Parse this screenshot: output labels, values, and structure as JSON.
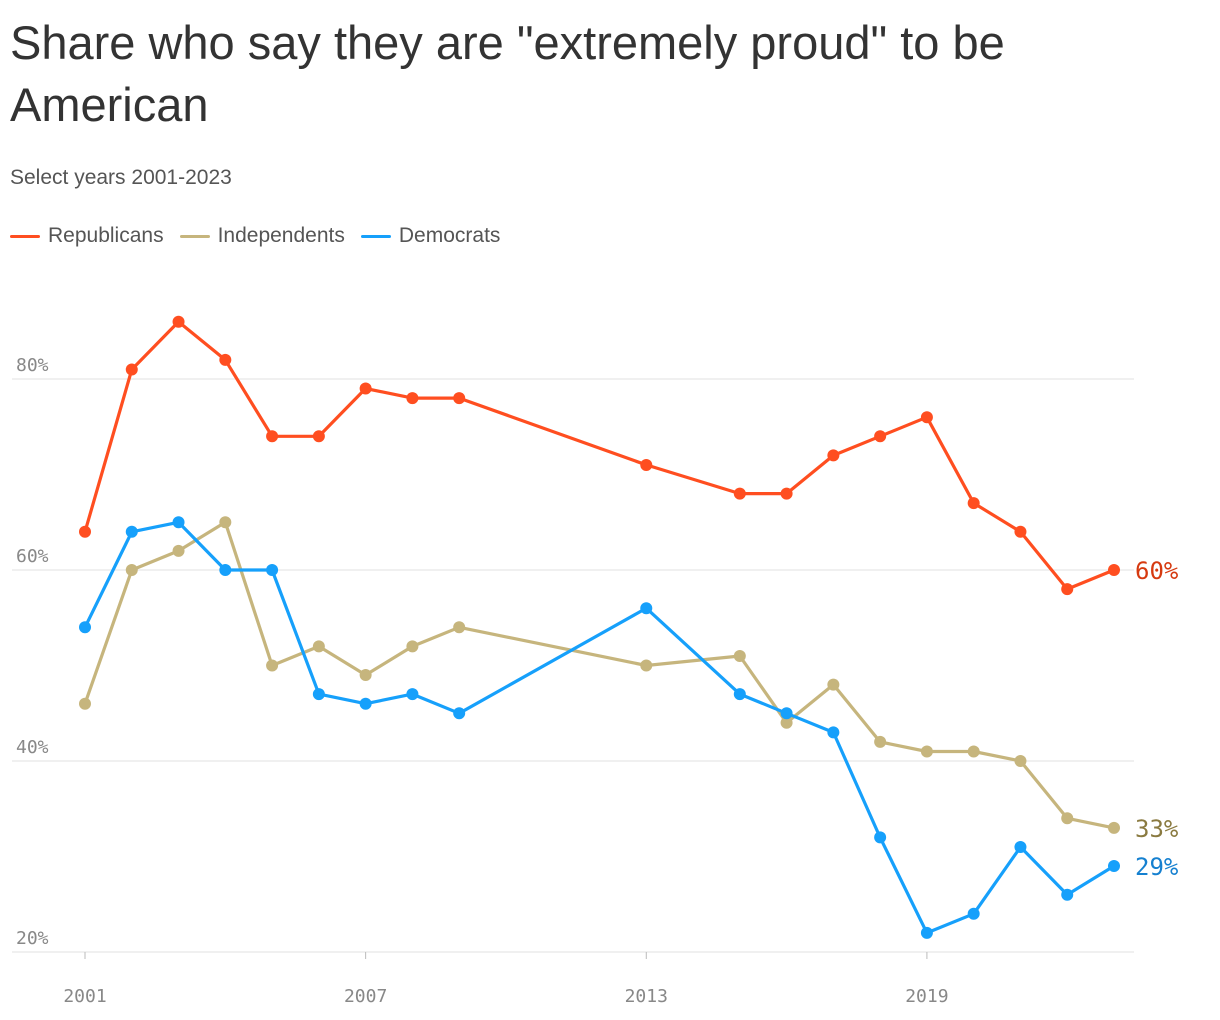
{
  "title": "Share who say they are \"extremely proud\" to be American",
  "subtitle": "Select years 2001-2023",
  "colors": {
    "republicans": "#ff4e20",
    "independents": "#c6b57d",
    "democrats": "#16a0fb",
    "rep_label": "#d63a10",
    "ind_label": "#8a7a40",
    "dem_label": "#1580d0",
    "grid": "#e2e2e2"
  },
  "chart_data": {
    "type": "line",
    "x": [
      2001,
      2002,
      2003,
      2004,
      2005,
      2006,
      2007,
      2008,
      2009,
      2013,
      2015,
      2016,
      2017,
      2018,
      2019,
      2020,
      2021,
      2022,
      2023
    ],
    "x_ticks": [
      "2001",
      "2007",
      "2013",
      "2019"
    ],
    "y_ticks": [
      "20%",
      "40%",
      "60%",
      "80%"
    ],
    "ylim": [
      20,
      88
    ],
    "grid": true,
    "legend_position": "top-left",
    "series": [
      {
        "name": "Republicans",
        "key": "republicans",
        "values": [
          64,
          81,
          86,
          82,
          74,
          74,
          79,
          78,
          78,
          71,
          68,
          68,
          72,
          74,
          76,
          67,
          64,
          58,
          60
        ],
        "end_label": "60%"
      },
      {
        "name": "Independents",
        "key": "independents",
        "values": [
          46,
          60,
          62,
          65,
          50,
          52,
          49,
          52,
          54,
          50,
          51,
          44,
          48,
          42,
          41,
          41,
          40,
          34,
          33
        ],
        "end_label": "33%"
      },
      {
        "name": "Democrats",
        "key": "democrats",
        "values": [
          54,
          64,
          65,
          60,
          60,
          47,
          46,
          47,
          45,
          56,
          47,
          45,
          43,
          32,
          22,
          24,
          31,
          26,
          29
        ],
        "end_label": "29%"
      }
    ]
  }
}
